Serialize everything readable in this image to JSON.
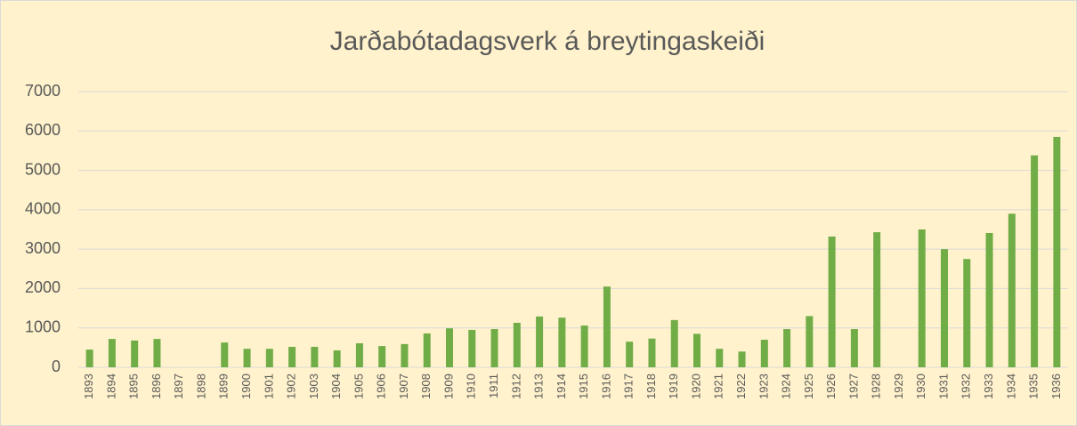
{
  "chart_data": {
    "type": "bar",
    "title": "Jarðabótadagsverk á breytingaskeiði",
    "categories": [
      "1893",
      "1894",
      "1895",
      "1896",
      "1897",
      "1898",
      "1899",
      "1900",
      "1901",
      "1902",
      "1903",
      "1904",
      "1905",
      "1906",
      "1907",
      "1908",
      "1909",
      "1910",
      "1911",
      "1912",
      "1913",
      "1914",
      "1915",
      "1916",
      "1917",
      "1918",
      "1919",
      "1920",
      "1921",
      "1922",
      "1923",
      "1924",
      "1925",
      "1926",
      "1927",
      "1928",
      "1929",
      "1930",
      "1931",
      "1932",
      "1933",
      "1934",
      "1935",
      "1936"
    ],
    "values": [
      450,
      720,
      680,
      720,
      null,
      null,
      630,
      470,
      470,
      520,
      520,
      430,
      610,
      540,
      590,
      860,
      990,
      950,
      970,
      1130,
      1290,
      1260,
      1060,
      2050,
      650,
      730,
      1200,
      850,
      470,
      400,
      700,
      970,
      1300,
      3320,
      970,
      3430,
      null,
      3500,
      3000,
      2750,
      3410,
      3900,
      5380,
      5850
    ],
    "color": "#70ad47",
    "ylim": [
      0,
      7000
    ],
    "yticks": [
      0,
      1000,
      2000,
      3000,
      4000,
      5000,
      6000,
      7000
    ],
    "grid": true
  }
}
